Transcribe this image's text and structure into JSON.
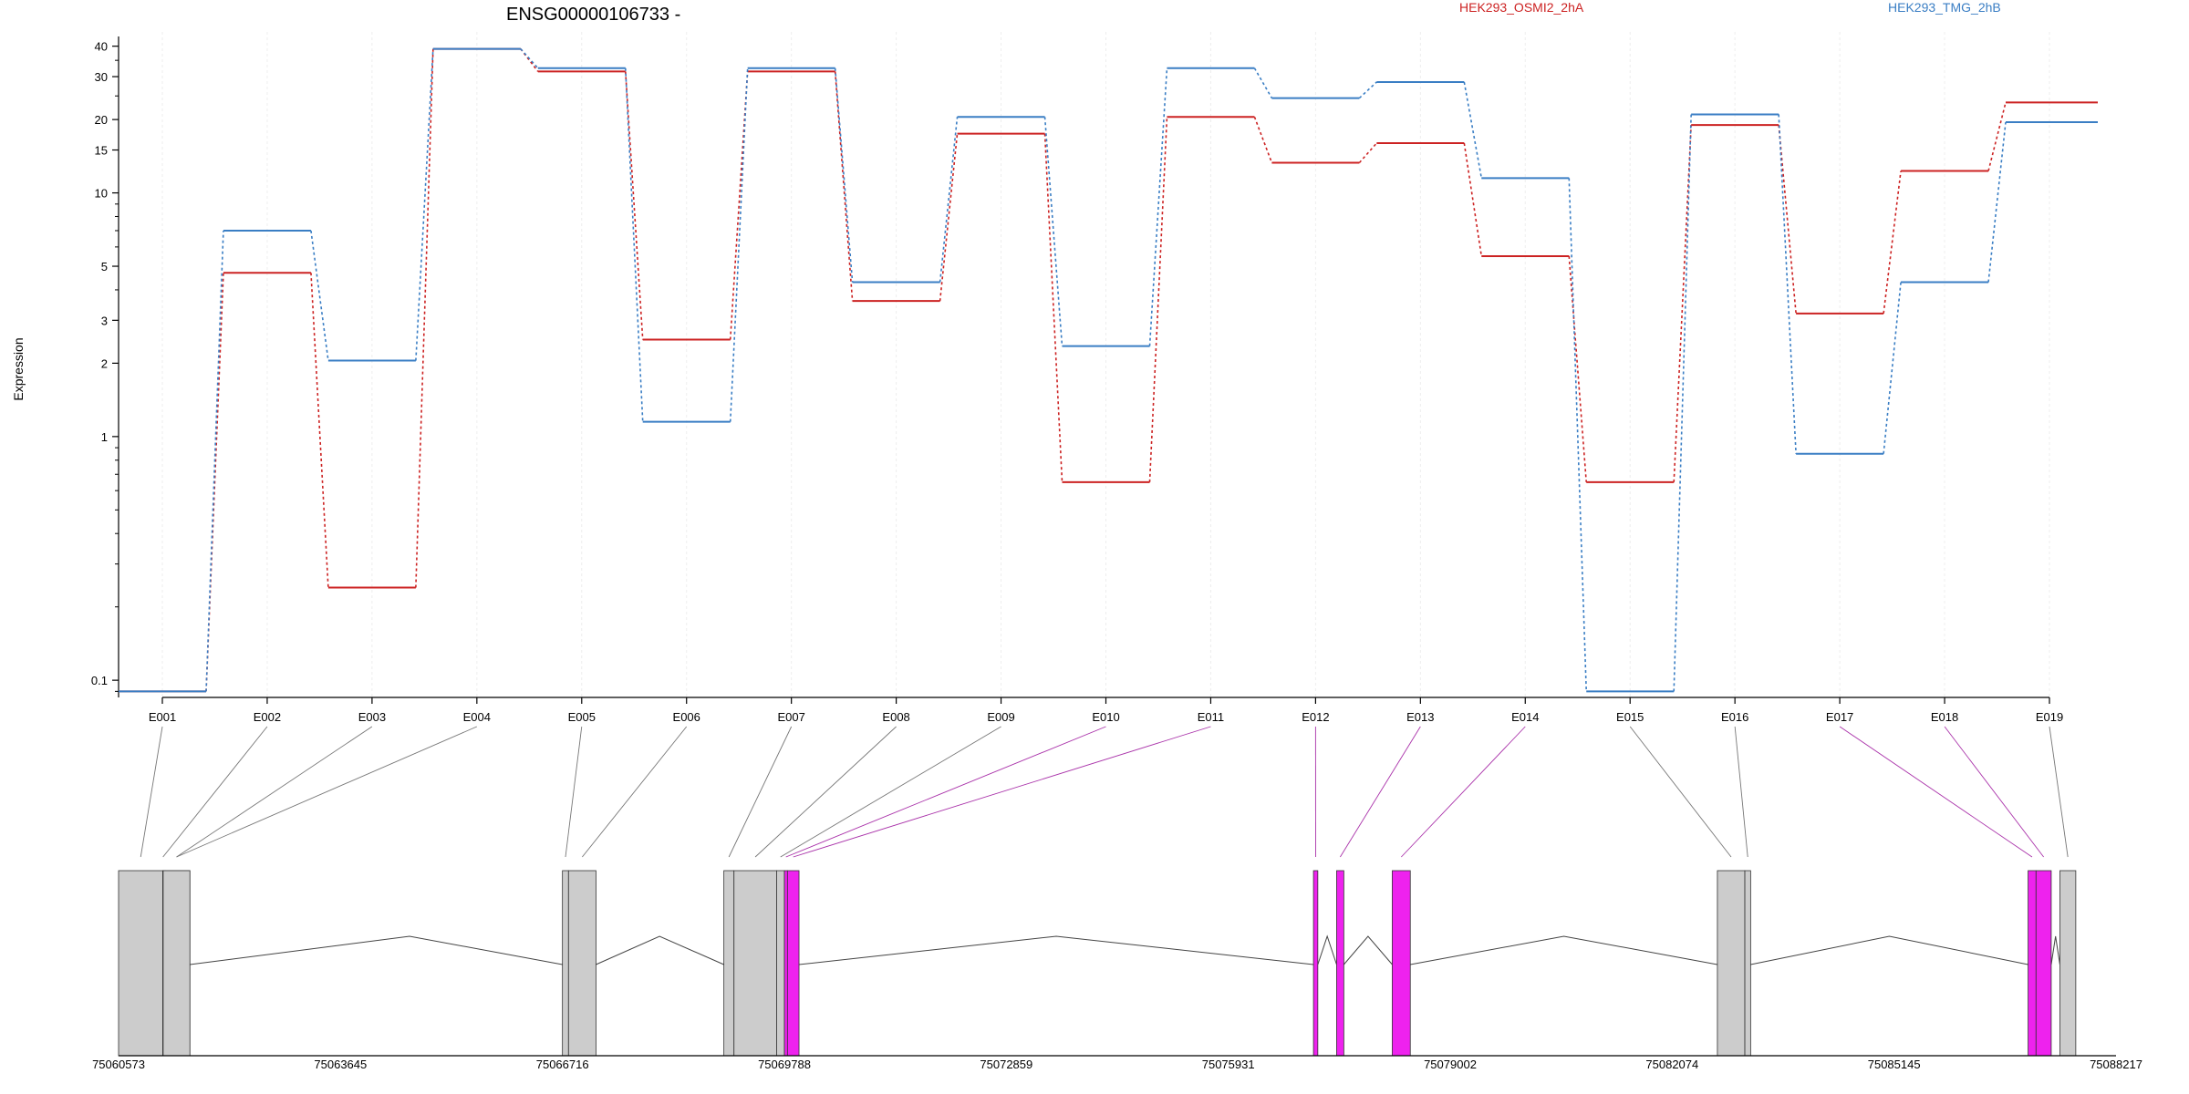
{
  "chart_data": {
    "type": "line",
    "title": "ENSG00000106733 -",
    "ylabel": "Expression",
    "xlabel": "",
    "y_scale": "log",
    "ylim": [
      0.085,
      42
    ],
    "y_ticks": [
      0.1,
      1,
      2,
      3,
      5,
      10,
      15,
      20,
      30,
      40
    ],
    "y_tick_labels": [
      "0.1",
      "1",
      "2",
      "3",
      "5",
      "10",
      "15",
      "20",
      "30",
      "40"
    ],
    "grid": "vertical-light",
    "legend_placement": "top-right",
    "categories": [
      "E001",
      "E002",
      "E003",
      "E004",
      "E005",
      "E006",
      "E007",
      "E008",
      "E009",
      "E010",
      "E011",
      "E012",
      "E013",
      "E014",
      "E015",
      "E016",
      "E017",
      "E018",
      "E019"
    ],
    "series": [
      {
        "name": "HEK293_OSMI2_2hA",
        "color": "#cc2222",
        "values": [
          0.09,
          4.7,
          0.24,
          39,
          31.5,
          2.5,
          31.5,
          3.6,
          17.5,
          0.65,
          20.5,
          13.3,
          16,
          5.5,
          0.65,
          19,
          3.2,
          12.3,
          23.5
        ]
      },
      {
        "name": "HEK293_TMG_2hB",
        "color": "#3a7ec4",
        "values": [
          0.09,
          7,
          2.05,
          39,
          32.5,
          1.15,
          32.5,
          4.3,
          20.5,
          2.35,
          32.5,
          24.5,
          28.5,
          11.5,
          0.09,
          21,
          0.85,
          4.3,
          19.5
        ]
      }
    ],
    "gene_model": {
      "coordinate_ticks": [
        "75060573",
        "75063645",
        "75066716",
        "75069788",
        "75072859",
        "75075931",
        "75079002",
        "75082074",
        "75085145",
        "75088217"
      ],
      "coord_range": [
        75060573,
        75088217
      ],
      "exon_color_normal": "#cccccc",
      "exon_color_highlight": "#ee22ee",
      "exons": [
        {
          "start": 75060573,
          "end": 75061185,
          "highlight": false,
          "label": "E001"
        },
        {
          "start": 75061185,
          "end": 75061190,
          "highlight": false,
          "label": "E002"
        },
        {
          "start": 75061190,
          "end": 75061560,
          "highlight": false,
          "label": "E003"
        },
        {
          "start": 75061190,
          "end": 75061560,
          "highlight": false,
          "label": "E004"
        },
        {
          "start": 75066716,
          "end": 75066800,
          "highlight": false,
          "label": "E005"
        },
        {
          "start": 75066800,
          "end": 75067180,
          "highlight": false,
          "label": "E006"
        },
        {
          "start": 75068950,
          "end": 75069090,
          "highlight": false,
          "label": "E007"
        },
        {
          "start": 75069090,
          "end": 75069680,
          "highlight": false,
          "label": "E008"
        },
        {
          "start": 75069680,
          "end": 75069788,
          "highlight": false,
          "label": "E009"
        },
        {
          "start": 75069788,
          "end": 75069830,
          "highlight": true,
          "label": "E010"
        },
        {
          "start": 75069830,
          "end": 75069990,
          "highlight": true,
          "label": "E011"
        },
        {
          "start": 75077110,
          "end": 75077170,
          "highlight": true,
          "label": "E012"
        },
        {
          "start": 75077430,
          "end": 75077530,
          "highlight": true,
          "label": "E013"
        },
        {
          "start": 75078200,
          "end": 75078450,
          "highlight": true,
          "label": "E014"
        },
        {
          "start": 75082700,
          "end": 75083080,
          "highlight": false,
          "label": "E015"
        },
        {
          "start": 75083080,
          "end": 75083160,
          "highlight": false,
          "label": "E016"
        },
        {
          "start": 75087000,
          "end": 75087110,
          "highlight": true,
          "label": "E017"
        },
        {
          "start": 75087110,
          "end": 75087320,
          "highlight": true,
          "label": "E018"
        },
        {
          "start": 75087440,
          "end": 75087660,
          "highlight": false,
          "label": "E019"
        }
      ],
      "introns": [
        [
          75061560,
          75066716,
          75064600
        ],
        [
          75067180,
          75068950,
          75068060
        ],
        [
          75069990,
          75077110,
          75073550
        ],
        [
          75077170,
          75077430,
          75077300
        ],
        [
          75077530,
          75078200,
          75077865
        ],
        [
          75078450,
          75082700,
          75080575
        ],
        [
          75083160,
          75087000,
          75085080
        ],
        [
          75087320,
          75087440,
          75087380
        ]
      ]
    }
  }
}
